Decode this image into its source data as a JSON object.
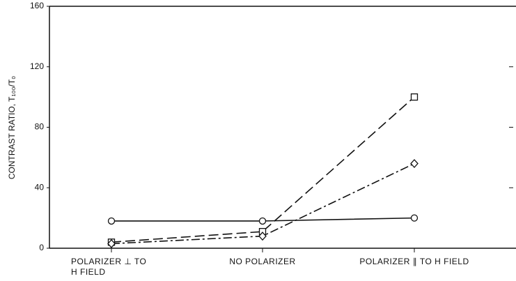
{
  "chart_data": {
    "type": "line",
    "ylabel": "CONTRAST RATIO, T₁₀₀/T₀",
    "categories": [
      "POLARIZER ⊥ TO H FIELD",
      "NO POLARIZER",
      "POLARIZER ∥ TO H FIELD"
    ],
    "series": [
      {
        "color": "#111111",
        "marker": "circle",
        "dash": "solid",
        "values": [
          18,
          18,
          20
        ]
      },
      {
        "color": "#111111",
        "marker": "square",
        "dash": "dashed",
        "values": [
          4,
          11,
          100
        ]
      },
      {
        "color": "#111111",
        "marker": "diamond",
        "dash": "dashdot",
        "values": [
          3,
          8,
          56
        ]
      }
    ],
    "ylim": [
      0,
      160
    ],
    "yticks": [
      0,
      40,
      80,
      120,
      160
    ],
    "grid": false
  }
}
